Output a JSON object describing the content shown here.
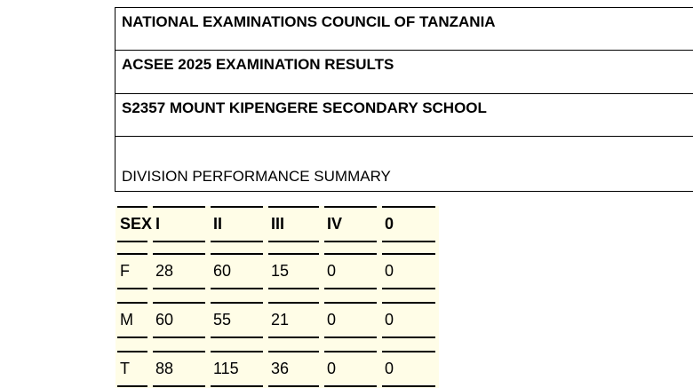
{
  "header": {
    "council": "NATIONAL EXAMINATIONS COUNCIL OF TANZANIA",
    "exam": "ACSEE 2025 EXAMINATION RESULTS",
    "school": "S2357 MOUNT KIPENGERE SECONDARY SCHOOL",
    "section_title": "DIVISION PERFORMANCE SUMMARY"
  },
  "summary_table": {
    "columns": [
      "SEX",
      "I",
      "II",
      "III",
      "IV",
      "0"
    ],
    "rows": [
      [
        "F",
        "28",
        "60",
        "15",
        "0",
        "0"
      ],
      [
        "M",
        "60",
        "55",
        "21",
        "0",
        "0"
      ],
      [
        "T",
        "88",
        "115",
        "36",
        "0",
        "0"
      ]
    ]
  },
  "colors": {
    "table_background": "#fffde7",
    "text": "#000000"
  }
}
